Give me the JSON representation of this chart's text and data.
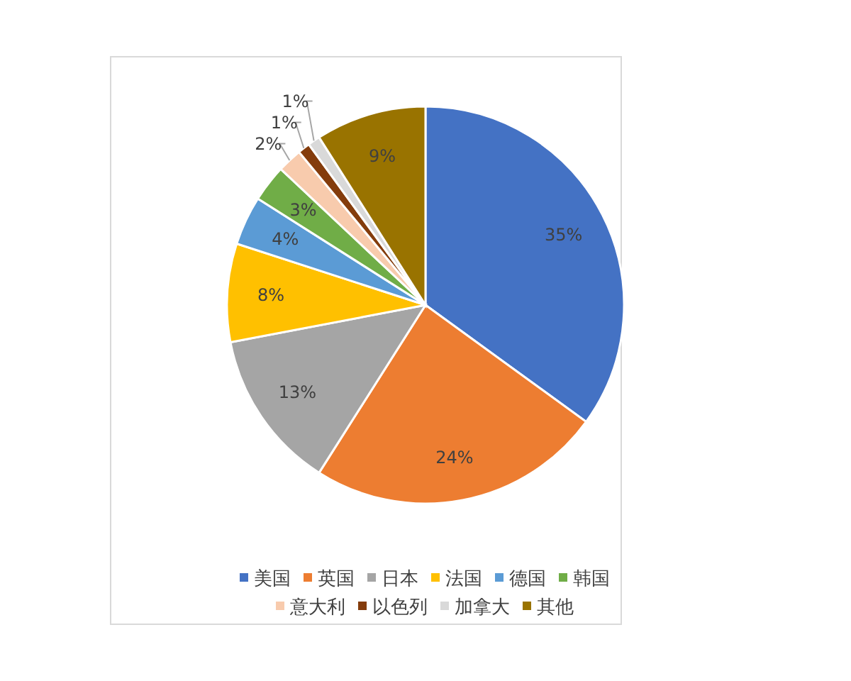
{
  "chart_data": {
    "type": "pie",
    "categories": [
      "美国",
      "英国",
      "日本",
      "法国",
      "德国",
      "韩国",
      "意大利",
      "以色列",
      "加拿大",
      "其他"
    ],
    "values": [
      35,
      24,
      13,
      8,
      4,
      3,
      2,
      1,
      1,
      9
    ],
    "colors": [
      "#4472c4",
      "#ed7d31",
      "#a5a5a5",
      "#ffc000",
      "#5b9bd5",
      "#70ad47",
      "#f8cbad",
      "#843c0c",
      "#d9d9d9",
      "#997300"
    ],
    "value_labels": [
      "35%",
      "24%",
      "13%",
      "8%",
      "4%",
      "3%",
      "2%",
      "1%",
      "1%",
      "9%"
    ],
    "legend": "bottom"
  }
}
